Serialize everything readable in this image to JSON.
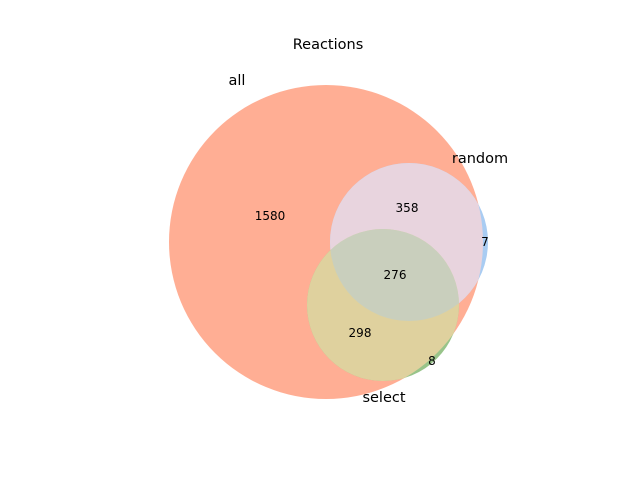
{
  "title": "Reactions",
  "sets": {
    "all": {
      "label": "all",
      "color": "#ff8c69"
    },
    "random": {
      "label": "random",
      "color": "#7ab8ff"
    },
    "select": {
      "label": "select",
      "color": "#6ab04c"
    }
  },
  "regions": {
    "all_only": "1580",
    "all_random": "358",
    "random_only": "7",
    "all_random_select": "276",
    "all_select": "298",
    "select_only": "8"
  }
}
